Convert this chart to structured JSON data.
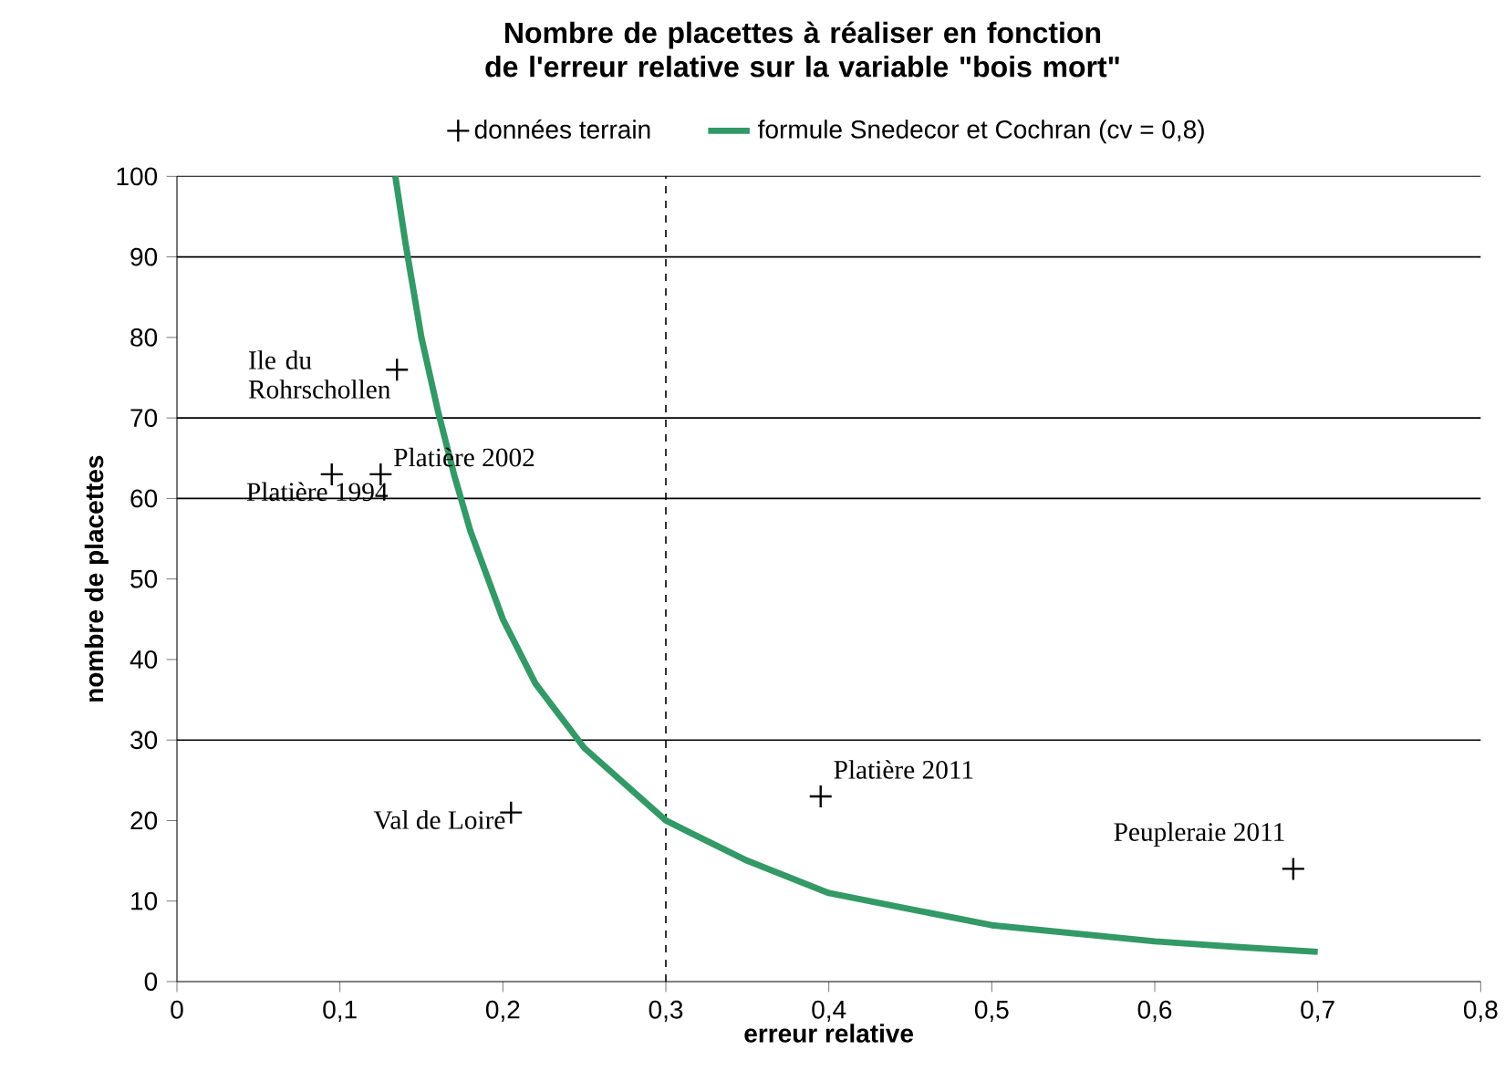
{
  "chart_data": {
    "type": "scatter",
    "title": "Nombre de placettes  à réaliser en fonction de l'erreur relative sur la variable \"bois mort\"",
    "xlabel": "erreur relative",
    "ylabel": "nombre de placettes",
    "xlim": [
      0,
      0.8
    ],
    "ylim": [
      0,
      100
    ],
    "xticks": [
      0,
      {
        "value": 0.1,
        "label": "0,1"
      },
      {
        "value": 0.2,
        "label": "0,2"
      },
      {
        "value": 0.3,
        "label": "0,3"
      },
      {
        "value": 0.4,
        "label": "0,4"
      },
      {
        "value": 0.5,
        "label": "0,5"
      },
      {
        "value": 0.6,
        "label": "0,6"
      },
      {
        "value": 0.7,
        "label": "0,7"
      },
      {
        "value": 0.8,
        "label": "0,8"
      }
    ],
    "yticks": [
      0,
      10,
      20,
      30,
      40,
      50,
      60,
      70,
      80,
      90,
      100
    ],
    "legend": "top",
    "series": [
      {
        "name": "données terrain",
        "color": "#000000",
        "marker": "cross",
        "x": [
          0.135,
          0.125,
          0.095,
          0.205,
          0.395,
          0.685
        ],
        "values": [
          76,
          63,
          63,
          21,
          23,
          14
        ]
      },
      {
        "type": "line",
        "name": "formule Snedecor et Cochran (cv = 0,8)",
        "color": "#339966",
        "marker": "none",
        "x": [
          0.134,
          0.14,
          0.15,
          0.16,
          0.17,
          0.18,
          0.2,
          0.22,
          0.25,
          0.3,
          0.35,
          0.4,
          0.45,
          0.5,
          0.55,
          0.6,
          0.65,
          0.7
        ],
        "values": [
          100,
          92,
          80,
          71,
          63,
          56,
          45,
          37,
          29,
          20,
          15,
          11,
          9,
          7,
          6,
          5,
          4.3,
          3.7
        ]
      }
    ],
    "ref_lines": [
      {
        "axis": "y",
        "value": 30,
        "color": "#000000",
        "line_style": "solid"
      },
      {
        "axis": "y",
        "value": 60,
        "color": "#000000",
        "line_style": "solid"
      },
      {
        "axis": "y",
        "value": 70,
        "color": "#000000",
        "line_style": "solid"
      },
      {
        "axis": "y",
        "value": 90,
        "color": "#000000",
        "line_style": "solid"
      },
      {
        "axis": "x",
        "value": 0.3,
        "color": "#000000",
        "line_style": "dashed"
      }
    ],
    "annotations": [
      {
        "text": "Ile du Rohrschollen",
        "x": 0.135,
        "y": 76
      },
      {
        "text": "Platière 2002",
        "x": 0.125,
        "y": 63
      },
      {
        "text": "Platière 1994",
        "x": 0.095,
        "y": 63
      },
      {
        "text": "Val de Loire",
        "x": 0.205,
        "y": 21
      },
      {
        "text": "Platière 2011",
        "x": 0.395,
        "y": 23
      },
      {
        "text": "Peupleraie 2011",
        "x": 0.685,
        "y": 14
      }
    ]
  }
}
